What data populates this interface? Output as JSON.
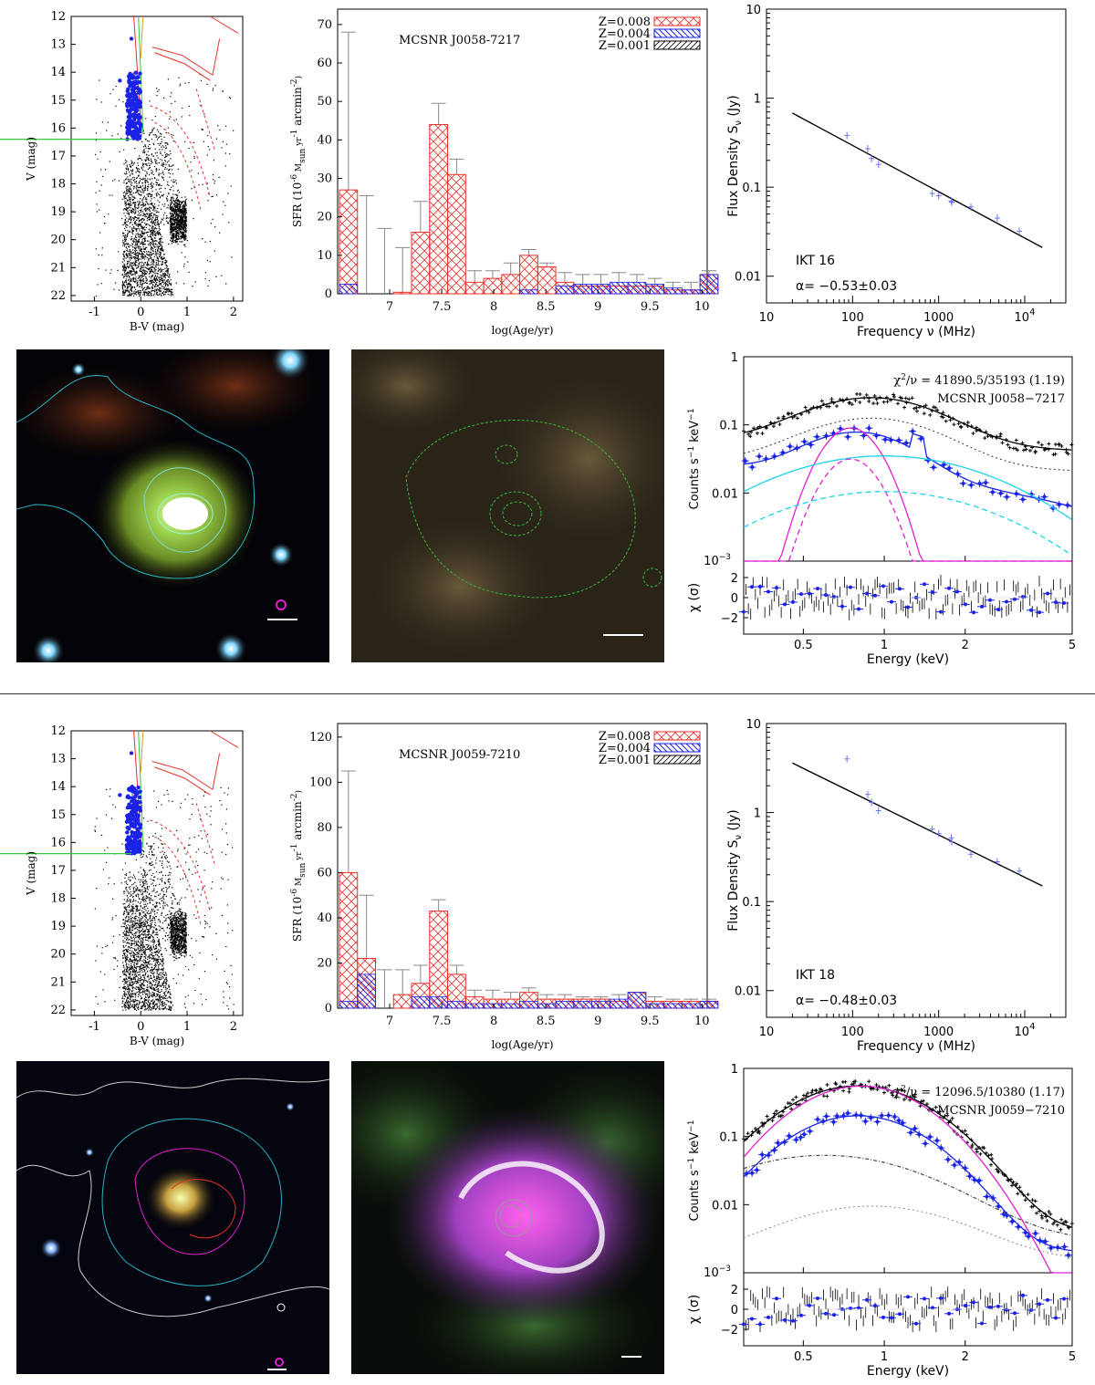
{
  "colors": {
    "red": "#e8302a",
    "blue": "#1a22e6",
    "magenta": "#e020d0",
    "cyan": "#19d3e8",
    "green": "#35c83a",
    "gray": "#888888"
  },
  "rows": [
    {
      "cmd": {
        "xlabel": "B-V (mag)",
        "ylabel": "V (mag)",
        "xticks": [
          "-1",
          "0",
          "1",
          "2"
        ],
        "yticks": [
          "12",
          "13",
          "14",
          "15",
          "16",
          "17",
          "18",
          "19",
          "20",
          "21",
          "22"
        ],
        "xlim": [
          -1.5,
          2.2
        ],
        "ylim": [
          12,
          22.2
        ],
        "cutoff_v": 16.4
      },
      "sfh": {
        "type": "bar",
        "title": "MCSNR J0058-7217",
        "xlabel": "log(Age/yr)",
        "ylabel_main": "SFR (10",
        "ylabel_exp1": "-6",
        "ylabel_mid": " M",
        "ylabel_sub": "sun",
        "ylabel_yr": " yr",
        "ylabel_exp2": "-1",
        "ylabel_arc": " arcmin",
        "ylabel_exp3": "-2",
        "ylabel_end": ")",
        "ylim": [
          0,
          74
        ],
        "yticks": [
          "0",
          "10",
          "20",
          "30",
          "40",
          "50",
          "60",
          "70"
        ],
        "xticks": [
          "7",
          "7.5",
          "8",
          "8.5",
          "9",
          "9.5",
          "10"
        ],
        "legend": [
          "Z=0.008",
          "Z=0.004",
          "Z=0.001"
        ],
        "ages": [
          6.6,
          6.8,
          7.0,
          7.2,
          7.4,
          7.6,
          7.7,
          7.9,
          8.1,
          8.2,
          8.4,
          8.5,
          8.7,
          8.9,
          9.0,
          9.2,
          9.3,
          9.5,
          9.6,
          9.8,
          10.0
        ],
        "z008": [
          27,
          0,
          0,
          0.4,
          16,
          44,
          31,
          3,
          4,
          5,
          10,
          7,
          3,
          2,
          2,
          2,
          2,
          2,
          1,
          1,
          5
        ],
        "z004": [
          2.5,
          0,
          0,
          0,
          0,
          0,
          0,
          0,
          0,
          0,
          1,
          0,
          2,
          2.5,
          2.5,
          3,
          3,
          2.5,
          1.5,
          1,
          5
        ],
        "err": [
          68,
          25.5,
          17,
          12,
          24,
          49.5,
          35,
          6,
          6,
          8,
          11.5,
          8,
          5.5,
          5,
          5,
          5.5,
          5,
          4,
          3,
          3,
          6
        ]
      },
      "radio": {
        "title": "IKT 16",
        "alpha": "α=  −0.53±0.03",
        "xlabel": "Frequency ν (MHz)",
        "ylabel": "Flux Density S",
        "ylabel_sub": "ν",
        "ylabel_unit": " (Jy)",
        "xticks": [
          "10",
          "100",
          "1000",
          "10"
        ],
        "xtick_exp": "4",
        "yticks": [
          "0.01",
          "0.1",
          "1",
          "10"
        ],
        "freq": [
          86,
          150,
          166,
          200,
          843,
          1000,
          1400,
          1420,
          2370,
          4800,
          8640
        ],
        "flux": [
          0.38,
          0.27,
          0.21,
          0.18,
          0.085,
          0.08,
          0.07,
          0.068,
          0.06,
          0.045,
          0.032
        ],
        "fit": {
          "f1": 20,
          "s1": 0.68,
          "f2": 16000,
          "s2": 0.021
        }
      },
      "xray": {
        "chi": "χ",
        "chi_exp": "2",
        "chi_rest": "/ν = 41890.5/35193 (1.19)",
        "name": "MCSNR J0058−7217",
        "ylabel": "Counts s",
        "ylabel_exp": "−1",
        "ylabel_rest": " keV",
        "ylabel_exp2": "−1",
        "resid_label": "χ (σ)",
        "xlabel": "Energy (keV)",
        "xticks": [
          "0.5",
          "1",
          "2",
          "5"
        ],
        "yticks": [
          "1",
          "0.1",
          "0.01"
        ],
        "ymin_tick": "10",
        "ymin_exp": "−3",
        "rticks": [
          "2",
          "0",
          "−2"
        ]
      }
    },
    {
      "cmd": {
        "xlabel": "B-V (mag)",
        "ylabel": "V (mag)",
        "xticks": [
          "-1",
          "0",
          "1",
          "2"
        ],
        "yticks": [
          "12",
          "13",
          "14",
          "15",
          "16",
          "17",
          "18",
          "19",
          "20",
          "21",
          "22"
        ],
        "xlim": [
          -1.5,
          2.2
        ],
        "ylim": [
          12,
          22.2
        ],
        "cutoff_v": 16.4
      },
      "sfh": {
        "type": "bar",
        "title": "MCSNR J0059-7210",
        "xlabel": "log(Age/yr)",
        "ylabel_main": "SFR (10",
        "ylabel_exp1": "-6",
        "ylabel_mid": " M",
        "ylabel_sub": "sun",
        "ylabel_yr": " yr",
        "ylabel_exp2": "-1",
        "ylabel_arc": " arcmin",
        "ylabel_exp3": "-2",
        "ylabel_end": ")",
        "ylim": [
          0,
          126
        ],
        "yticks": [
          "0",
          "20",
          "40",
          "60",
          "80",
          "100",
          "120"
        ],
        "xticks": [
          "7",
          "7.5",
          "8",
          "8.5",
          "9",
          "9.5",
          "10"
        ],
        "legend": [
          "Z=0.008",
          "Z=0.004",
          "Z=0.001"
        ],
        "ages": [
          6.6,
          6.8,
          7.0,
          7.2,
          7.4,
          7.6,
          7.7,
          7.9,
          8.1,
          8.2,
          8.4,
          8.5,
          8.7,
          8.9,
          9.0,
          9.2,
          9.3,
          9.5,
          9.6,
          9.8,
          10.0
        ],
        "z008": [
          60,
          22,
          0,
          6,
          11,
          43,
          15,
          5,
          4,
          4,
          7,
          4,
          4,
          4,
          4,
          3,
          7,
          3,
          3,
          3,
          3
        ],
        "z004": [
          3,
          15,
          0,
          0,
          5,
          5,
          3,
          2,
          2,
          2,
          3,
          2,
          3,
          3,
          3,
          4,
          7,
          2,
          2,
          2,
          3
        ],
        "err": [
          105,
          50,
          17,
          17,
          19,
          48,
          19,
          8,
          8,
          7,
          9,
          6,
          6,
          5,
          5,
          6,
          7,
          5,
          4,
          4,
          4
        ]
      },
      "radio": {
        "title": "IKT 18",
        "alpha": "α=  −0.48±0.03",
        "xlabel": "Frequency ν (MHz)",
        "ylabel": "Flux Density S",
        "ylabel_sub": "ν",
        "ylabel_unit": " (Jy)",
        "xticks": [
          "10",
          "100",
          "1000",
          "10"
        ],
        "xtick_exp": "4",
        "yticks": [
          "0.01",
          "0.1",
          "1",
          "10"
        ],
        "freq": [
          86,
          150,
          166,
          200,
          843,
          1000,
          1400,
          1420,
          2370,
          4800,
          8640
        ],
        "flux": [
          4.0,
          1.6,
          1.3,
          1.05,
          0.65,
          0.58,
          0.52,
          0.47,
          0.34,
          0.28,
          0.22
        ],
        "fit": {
          "f1": 20,
          "s1": 3.6,
          "f2": 16000,
          "s2": 0.15
        }
      },
      "xray": {
        "chi": "χ",
        "chi_exp": "2",
        "chi_rest": "/ν = 12096.5/10380 (1.17)",
        "name": "MCSNR J0059−7210",
        "ylabel": "Counts s",
        "ylabel_exp": "−1",
        "ylabel_rest": " keV",
        "ylabel_exp2": "−1",
        "resid_label": "χ (σ)",
        "xlabel": "Energy (keV)",
        "xticks": [
          "0.5",
          "1",
          "2",
          "5"
        ],
        "yticks": [
          "1",
          "0.1",
          "0.01"
        ],
        "ymin_tick": "10",
        "ymin_exp": "−3",
        "rticks": [
          "2",
          "0",
          "−2"
        ]
      }
    }
  ]
}
